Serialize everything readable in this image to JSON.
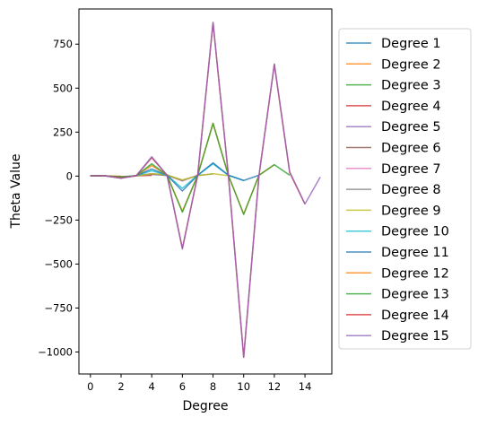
{
  "chart_data": {
    "type": "line",
    "xlabel": "Degree",
    "ylabel": "Theta Value",
    "xlim": [
      -0.75,
      15.75
    ],
    "ylim": [
      -1125,
      950
    ],
    "xticks": [
      0,
      2,
      4,
      6,
      8,
      10,
      12,
      14
    ],
    "xtick_labels": [
      "0",
      "2",
      "4",
      "6",
      "8",
      "10",
      "12",
      "14"
    ],
    "yticks": [
      750,
      500,
      250,
      0,
      -250,
      -500,
      -750,
      -1000
    ],
    "ytick_labels": [
      "750",
      "500",
      "250",
      "0",
      "−250",
      "−500",
      "−750",
      "−1000"
    ],
    "legend_position": "outside-right",
    "grid": false,
    "series": [
      {
        "name": "Degree 1",
        "color": "#1f77b4",
        "x": [
          0,
          1
        ],
        "y": [
          2,
          1
        ]
      },
      {
        "name": "Degree 2",
        "color": "#ff7f0e",
        "x": [
          0,
          1,
          2
        ],
        "y": [
          2,
          1,
          -1
        ]
      },
      {
        "name": "Degree 3",
        "color": "#2ca02c",
        "x": [
          0,
          1,
          2,
          3
        ],
        "y": [
          2,
          1,
          -3,
          1
        ]
      },
      {
        "name": "Degree 4",
        "color": "#d62728",
        "x": [
          0,
          1,
          2,
          3,
          4
        ],
        "y": [
          2,
          1,
          -5,
          2,
          4
        ]
      },
      {
        "name": "Degree 5",
        "color": "#9467bd",
        "x": [
          0,
          1,
          2,
          3,
          4,
          5
        ],
        "y": [
          2,
          1,
          -8,
          3,
          10,
          3
        ]
      },
      {
        "name": "Degree 6",
        "color": "#8c564b",
        "x": [
          0,
          1,
          2,
          3,
          4,
          5,
          6
        ],
        "y": [
          2,
          1,
          -10,
          3,
          12,
          4,
          -25
        ]
      },
      {
        "name": "Degree 7",
        "color": "#e377c2",
        "x": [
          0,
          1,
          2,
          3,
          4,
          5,
          6,
          7
        ],
        "y": [
          2,
          1,
          -10,
          2,
          14,
          6,
          -28,
          6
        ]
      },
      {
        "name": "Degree 8",
        "color": "#7f7f7f",
        "x": [
          0,
          1,
          2,
          3,
          4,
          5,
          6,
          7,
          8
        ],
        "y": [
          2,
          1,
          -12,
          3,
          10,
          7,
          -25,
          4,
          12
        ]
      },
      {
        "name": "Degree 9",
        "color": "#bcbd22",
        "x": [
          0,
          1,
          2,
          3,
          4,
          5,
          6,
          7,
          8,
          9
        ],
        "y": [
          2,
          1,
          -10,
          2,
          14,
          6,
          -22,
          2,
          14,
          2
        ]
      },
      {
        "name": "Degree 10",
        "color": "#17becf",
        "x": [
          0,
          1,
          2,
          3,
          4,
          5,
          6,
          7,
          8,
          9,
          10
        ],
        "y": [
          2,
          1,
          -8,
          3,
          30,
          5,
          -70,
          5,
          70,
          5,
          -25
        ]
      },
      {
        "name": "Degree 11",
        "color": "#1f77b4",
        "x": [
          0,
          1,
          2,
          3,
          4,
          5,
          6,
          7,
          8,
          9,
          10,
          11
        ],
        "y": [
          2,
          1,
          -8,
          3,
          40,
          5,
          -85,
          5,
          75,
          5,
          -25,
          5
        ]
      },
      {
        "name": "Degree 12",
        "color": "#ff7f0e",
        "x": [
          0,
          1,
          2,
          3,
          4,
          5,
          6,
          7,
          8,
          9,
          10,
          11,
          12
        ],
        "y": [
          2,
          1,
          -8,
          3,
          60,
          5,
          -200,
          5,
          300,
          5,
          -215,
          5,
          65
        ]
      },
      {
        "name": "Degree 13",
        "color": "#2ca02c",
        "x": [
          0,
          1,
          2,
          3,
          4,
          5,
          6,
          7,
          8,
          9,
          10,
          11,
          12,
          13
        ],
        "y": [
          2,
          1,
          -8,
          3,
          70,
          5,
          -205,
          5,
          300,
          5,
          -218,
          5,
          65,
          5
        ]
      },
      {
        "name": "Degree 14",
        "color": "#d62728",
        "x": [
          0,
          1,
          2,
          3,
          4,
          5,
          6,
          7,
          8,
          9,
          10,
          11,
          12,
          13,
          14
        ],
        "y": [
          2,
          1,
          -12,
          3,
          105,
          5,
          -410,
          5,
          870,
          5,
          -1030,
          5,
          635,
          20,
          -160
        ]
      },
      {
        "name": "Degree 15",
        "color": "#9467bd",
        "x": [
          0,
          1,
          2,
          3,
          4,
          5,
          6,
          7,
          8,
          9,
          10,
          11,
          12,
          13,
          14,
          15
        ],
        "y": [
          2,
          1,
          -12,
          3,
          110,
          5,
          -415,
          5,
          875,
          5,
          -1030,
          5,
          637,
          25,
          -158,
          -5
        ]
      }
    ]
  }
}
